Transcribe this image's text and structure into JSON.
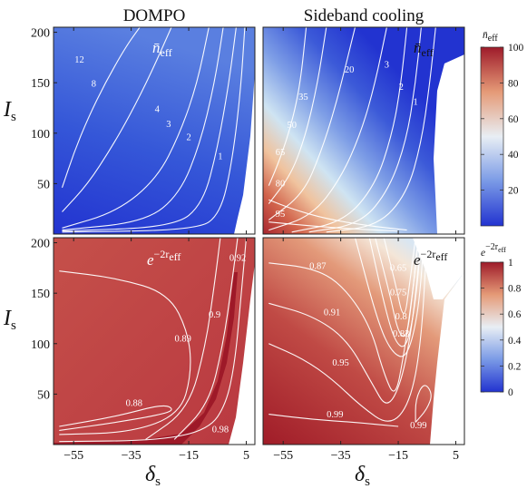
{
  "chart_data": [
    {
      "type": "heatmap",
      "panel": "top-left",
      "title": "DOMPO",
      "annotation_main": "n̄",
      "annotation_sub": "eff",
      "xlabel_main": "δ",
      "xlabel_sub": "s",
      "ylabel_main": "I",
      "ylabel_sub": "s",
      "xlim": [
        -62,
        8
      ],
      "ylim": [
        0,
        205
      ],
      "xticks": [
        -55,
        -35,
        -15,
        5
      ],
      "yticks": [
        50,
        100,
        150,
        200
      ],
      "contours": [
        {
          "label": "12",
          "points": [
            [
              -59,
              46
            ],
            [
              -55,
              80
            ],
            [
              -50,
              115
            ],
            [
              -44,
              150
            ],
            [
              -37,
              185
            ],
            [
              -32,
              205
            ]
          ],
          "label_at": [
            -53,
            170
          ]
        },
        {
          "label": "8",
          "points": [
            [
              -59,
              22
            ],
            [
              -50,
              50
            ],
            [
              -42,
              85
            ],
            [
              -35,
              120
            ],
            [
              -28,
              160
            ],
            [
              -21,
              205
            ]
          ],
          "label_at": [
            -48,
            146
          ]
        },
        {
          "label": "4",
          "points": [
            [
              -59,
              6
            ],
            [
              -40,
              22
            ],
            [
              -26,
              55
            ],
            [
              -18,
              100
            ],
            [
              -12,
              150
            ],
            [
              -8,
              205
            ]
          ],
          "label_at": [
            -26,
            121
          ]
        },
        {
          "label": "3",
          "points": [
            [
              -59,
              4
            ],
            [
              -30,
              12
            ],
            [
              -18,
              40
            ],
            [
              -11,
              90
            ],
            [
              -6,
              150
            ],
            [
              -3,
              205
            ]
          ],
          "label_at": [
            -22,
            106
          ]
        },
        {
          "label": "2",
          "points": [
            [
              -59,
              3
            ],
            [
              -20,
              7
            ],
            [
              -10,
              30
            ],
            [
              -5,
              85
            ],
            [
              -1,
              150
            ],
            [
              1.5,
              205
            ]
          ],
          "label_at": [
            -15,
            93
          ]
        },
        {
          "label": "1",
          "points": [
            [
              -59,
              2
            ],
            [
              -12,
              4
            ],
            [
              -4,
              20
            ],
            [
              0,
              70
            ],
            [
              3,
              140
            ],
            [
              4.5,
              205
            ]
          ],
          "label_at": [
            -4,
            74
          ]
        }
      ],
      "colorbar": {
        "label_main": "n̄",
        "label_sub": "eff",
        "range": [
          0,
          100
        ],
        "ticks": [
          20,
          40,
          60,
          80,
          100
        ]
      }
    },
    {
      "type": "heatmap",
      "panel": "top-right",
      "title": "Sideband cooling",
      "annotation_main": "n̄",
      "annotation_sub": "eff",
      "xlabel_main": "δ",
      "xlabel_sub": "s",
      "xlim": [
        -62,
        8
      ],
      "ylim": [
        0,
        205
      ],
      "xticks": [
        -55,
        -35,
        -15,
        5
      ],
      "contours": [
        {
          "label": "1",
          "points": [
            [
              -40,
              2
            ],
            [
              -22,
              8
            ],
            [
              -12,
              40
            ],
            [
              -7,
              90
            ],
            [
              -4,
              150
            ],
            [
              -2,
              205
            ]
          ],
          "label_at": [
            -9,
            128
          ]
        },
        {
          "label": "2",
          "points": [
            [
              -46,
              2
            ],
            [
              -28,
              10
            ],
            [
              -18,
              45
            ],
            [
              -12,
              95
            ],
            [
              -9,
              150
            ],
            [
              -7,
              205
            ]
          ],
          "label_at": [
            -14,
            143
          ]
        },
        {
          "label": "3",
          "points": [
            [
              -52,
              2
            ],
            [
              -34,
              12
            ],
            [
              -23,
              48
            ],
            [
              -17,
              100
            ],
            [
              -14,
              150
            ],
            [
              -12,
              205
            ]
          ],
          "label_at": [
            -19,
            165
          ]
        },
        {
          "label": "20",
          "points": [
            [
              -60,
              4
            ],
            [
              -45,
              18
            ],
            [
              -35,
              55
            ],
            [
              -28,
              100
            ],
            [
              -23,
              150
            ],
            [
              -19,
              205
            ]
          ],
          "label_at": [
            -32,
            160
          ]
        },
        {
          "label": "35",
          "points": [
            [
              -60,
              14
            ],
            [
              -48,
              40
            ],
            [
              -42,
              80
            ],
            [
              -37,
              125
            ],
            [
              -33,
              170
            ],
            [
              -30,
              205
            ]
          ],
          "label_at": [
            -48,
            133
          ]
        },
        {
          "label": "50",
          "points": [
            [
              -60,
              30
            ],
            [
              -52,
              60
            ],
            [
              -47,
              100
            ],
            [
              -43,
              150
            ],
            [
              -40,
              205
            ]
          ],
          "label_at": [
            -52,
            105
          ]
        },
        {
          "label": "65",
          "points": [
            [
              -60,
              48
            ],
            [
              -56,
              75
            ],
            [
              -52,
              110
            ],
            [
              -49,
              150
            ],
            [
              -47,
              205
            ]
          ],
          "label_at": [
            -56,
            78
          ]
        },
        {
          "label": "80",
          "points": [
            [
              -60,
              34
            ],
            [
              -52,
              25
            ],
            [
              -40,
              15
            ],
            [
              -25,
              8
            ],
            [
              -12,
              4
            ]
          ],
          "label_at": [
            -56,
            47
          ]
        },
        {
          "label": "95",
          "points": [
            [
              -60,
              12
            ],
            [
              -45,
              8
            ],
            [
              -30,
              5
            ],
            [
              -15,
              3
            ]
          ],
          "label_at": [
            -56,
            17
          ]
        }
      ]
    },
    {
      "type": "heatmap",
      "panel": "bottom-left",
      "annotation_main": "e",
      "annotation_sup": "−2r",
      "annotation_sup_sub": "eff",
      "xlabel_main": "δ",
      "xlabel_sub": "s",
      "ylabel_main": "I",
      "ylabel_sub": "s",
      "xlim": [
        -62,
        8
      ],
      "ylim": [
        0,
        205
      ],
      "xticks": [
        -55,
        -35,
        -15,
        5
      ],
      "yticks": [
        50,
        100,
        150,
        200
      ],
      "contours": [
        {
          "label": "0.92",
          "points": [
            [
              -20,
              5
            ],
            [
              -8,
              40
            ],
            [
              -3,
              100
            ],
            [
              0,
              160
            ],
            [
              2,
              205
            ]
          ],
          "label_at": [
            2,
            182
          ]
        },
        {
          "label": "0.9",
          "points": [
            [
              -30,
              5
            ],
            [
              -15,
              35
            ],
            [
              -9,
              100
            ],
            [
              -6,
              160
            ],
            [
              -4,
              205
            ]
          ],
          "label_at": [
            -6,
            126
          ]
        },
        {
          "label": "0.89",
          "points": [
            [
              -60,
              172
            ],
            [
              -40,
              165
            ],
            [
              -22,
              150
            ],
            [
              -15,
              110
            ],
            [
              -14,
              70
            ],
            [
              -18,
              30
            ],
            [
              -35,
              12
            ],
            [
              -60,
              10
            ]
          ],
          "label_at": [
            -17,
            102
          ]
        },
        {
          "label": "0.88",
          "points": [
            [
              -60,
              18
            ],
            [
              -40,
              28
            ],
            [
              -24,
              40
            ],
            [
              -20,
              35
            ],
            [
              -24,
              30
            ],
            [
              -40,
              22
            ],
            [
              -60,
              14
            ]
          ],
          "label_at": [
            -34,
            38
          ]
        },
        {
          "label": "0.98",
          "points": [
            [
              -60,
              3
            ],
            [
              -25,
              4
            ],
            [
              -8,
              15
            ],
            [
              -2,
              40
            ],
            [
              1,
              80
            ],
            [
              3,
              140
            ],
            [
              5,
              205
            ]
          ],
          "label_at": [
            -4,
            12
          ]
        }
      ],
      "colorbar": {
        "label_main": "e",
        "label_sup": "−2r",
        "label_sup_sub": "eff",
        "range": [
          0,
          1
        ],
        "ticks": [
          0,
          0.2,
          0.4,
          0.6,
          0.8,
          1
        ]
      }
    },
    {
      "type": "heatmap",
      "panel": "bottom-right",
      "annotation_main": "e",
      "annotation_sup": "−2r",
      "annotation_sup_sub": "eff",
      "xlabel_main": "δ",
      "xlabel_sub": "s",
      "xlim": [
        -62,
        8
      ],
      "ylim": [
        0,
        205
      ],
      "xticks": [
        -55,
        -35,
        -15,
        5
      ],
      "contours": [
        {
          "label": "0.87",
          "points": [
            [
              -60,
              180
            ],
            [
              -45,
              175
            ],
            [
              -35,
              160
            ],
            [
              -25,
              120
            ],
            [
              -20,
              70
            ],
            [
              -16,
              45
            ],
            [
              -13,
              90
            ],
            [
              -10,
              150
            ],
            [
              -8,
              205
            ]
          ],
          "label_at": [
            -43,
            174
          ]
        },
        {
          "label": "0.65",
          "points": [
            [
              -20,
              205
            ],
            [
              -16,
              160
            ],
            [
              -13,
              120
            ],
            [
              -11,
              160
            ],
            [
              -9,
              205
            ]
          ],
          "label_at": [
            -15,
            172
          ]
        },
        {
          "label": "0.75",
          "points": [
            [
              -23,
              205
            ],
            [
              -18,
              150
            ],
            [
              -15,
              110
            ],
            [
              -12,
              105
            ],
            [
              -10,
              150
            ],
            [
              -8,
              205
            ]
          ],
          "label_at": [
            -15,
            148
          ]
        },
        {
          "label": "0.8",
          "points": [
            [
              -25,
              205
            ],
            [
              -20,
              140
            ],
            [
              -16,
              100
            ],
            [
              -12,
              95
            ],
            [
              -9,
              140
            ],
            [
              -7,
              205
            ]
          ],
          "label_at": [
            -14,
            124
          ]
        },
        {
          "label": "0.83",
          "points": [
            [
              -30,
              205
            ],
            [
              -22,
              120
            ],
            [
              -17,
              90
            ],
            [
              -12,
              85
            ],
            [
              -8,
              130
            ],
            [
              -6,
              205
            ]
          ],
          "label_at": [
            -14,
            107
          ]
        },
        {
          "label": "0.91",
          "points": [
            [
              -60,
              140
            ],
            [
              -45,
              128
            ],
            [
              -33,
              105
            ],
            [
              -24,
              60
            ],
            [
              -19,
              35
            ],
            [
              -14,
              60
            ],
            [
              -10,
              120
            ],
            [
              -7,
              205
            ]
          ],
          "label_at": [
            -38,
            128
          ]
        },
        {
          "label": "0.95",
          "points": [
            [
              -60,
              100
            ],
            [
              -48,
              85
            ],
            [
              -38,
              65
            ],
            [
              -28,
              38
            ],
            [
              -18,
              18
            ],
            [
              -11,
              40
            ],
            [
              -7,
              100
            ],
            [
              -5,
              205
            ]
          ],
          "label_at": [
            -35,
            78
          ]
        },
        {
          "label": "0.99",
          "points": [
            [
              -60,
              30
            ],
            [
              -45,
              25
            ],
            [
              -30,
              22
            ],
            [
              -15,
              18
            ]
          ],
          "label_at": [
            -37,
            27
          ]
        },
        {
          "label": "0.99",
          "points": [
            [
              -9,
              22
            ],
            [
              -5,
              35
            ],
            [
              -3,
              50
            ],
            [
              -6,
              62
            ],
            [
              -9,
              45
            ],
            [
              -9,
              22
            ]
          ],
          "label_at": [
            -8,
            16
          ]
        }
      ]
    }
  ]
}
